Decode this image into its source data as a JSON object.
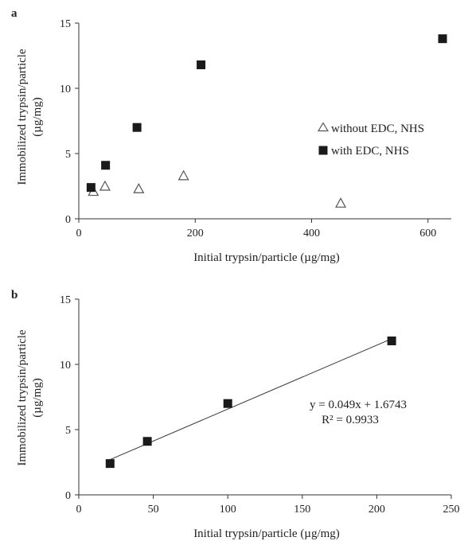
{
  "chart_data": [
    {
      "type": "scatter",
      "panel_label": "a",
      "xlabel": "Initial trypsin/particle (µg/mg)",
      "ylabel": "Immobilized trypsin/particle (µg/mg)",
      "xlim": [
        0,
        640
      ],
      "ylim": [
        0,
        15
      ],
      "x_ticks": [
        0,
        200,
        400,
        600
      ],
      "y_ticks": [
        0,
        5,
        10,
        15
      ],
      "grid": false,
      "legend_position": "right",
      "series": [
        {
          "name": "without EDC, NHS",
          "marker": "open-triangle",
          "color": "#555555",
          "x": [
            25,
            45,
            103,
            180,
            450
          ],
          "y": [
            2.1,
            2.5,
            2.3,
            3.3,
            1.2
          ]
        },
        {
          "name": "with EDC, NHS",
          "marker": "filled-square",
          "color": "#1a1a1a",
          "x": [
            21,
            46,
            100,
            210,
            625
          ],
          "y": [
            2.4,
            4.1,
            7.0,
            11.8,
            13.8
          ]
        }
      ]
    },
    {
      "type": "scatter",
      "panel_label": "b",
      "xlabel": "Initial trypsin/particle (µg/mg)",
      "ylabel": "Immobilized trypsin/particle (µg/mg)",
      "xlim": [
        0,
        250
      ],
      "ylim": [
        0,
        15
      ],
      "x_ticks": [
        0,
        50,
        100,
        150,
        200,
        250
      ],
      "y_ticks": [
        0,
        5,
        10,
        15
      ],
      "grid": false,
      "series": [
        {
          "marker": "filled-square",
          "color": "#1a1a1a",
          "x": [
            21,
            46,
            100,
            210
          ],
          "y": [
            2.4,
            4.1,
            7.0,
            11.8
          ]
        }
      ],
      "trendline": {
        "slope": 0.049,
        "intercept": 1.6743,
        "x_range": [
          21,
          210
        ],
        "equation": "y = 0.049x + 1.6743",
        "r_squared": "R² = 0.9933"
      }
    }
  ]
}
